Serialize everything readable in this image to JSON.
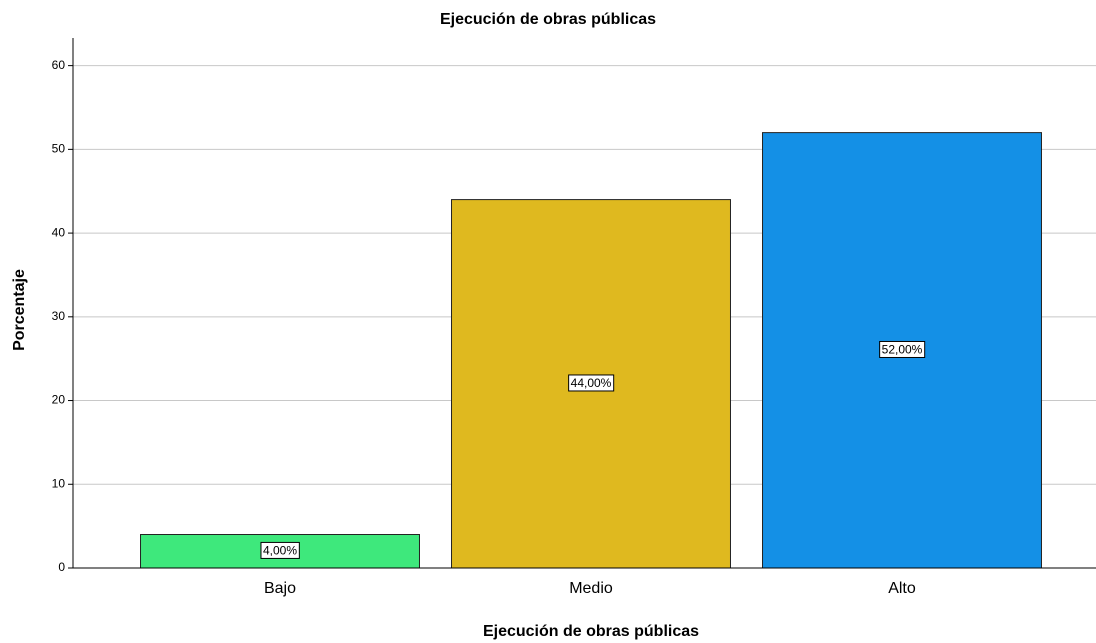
{
  "chart_data": {
    "type": "bar",
    "title": "Ejecución de obras públicas",
    "x_label": "Ejecución de obras públicas",
    "y_label": "Porcentaje",
    "categories": [
      "Bajo",
      "Medio",
      "Alto"
    ],
    "series": [
      {
        "name": "Porcentaje",
        "colors": [
          "#3ee87c",
          "#dfb91f",
          "#1490e6"
        ],
        "values": [
          4,
          44,
          52
        ],
        "value_labels": [
          "4,00%",
          "44,00%",
          "52,00%"
        ]
      }
    ],
    "ylim": [
      0,
      63.3
    ],
    "yticks": [
      0,
      10,
      20,
      30,
      40,
      50,
      60
    ],
    "grid": true
  }
}
